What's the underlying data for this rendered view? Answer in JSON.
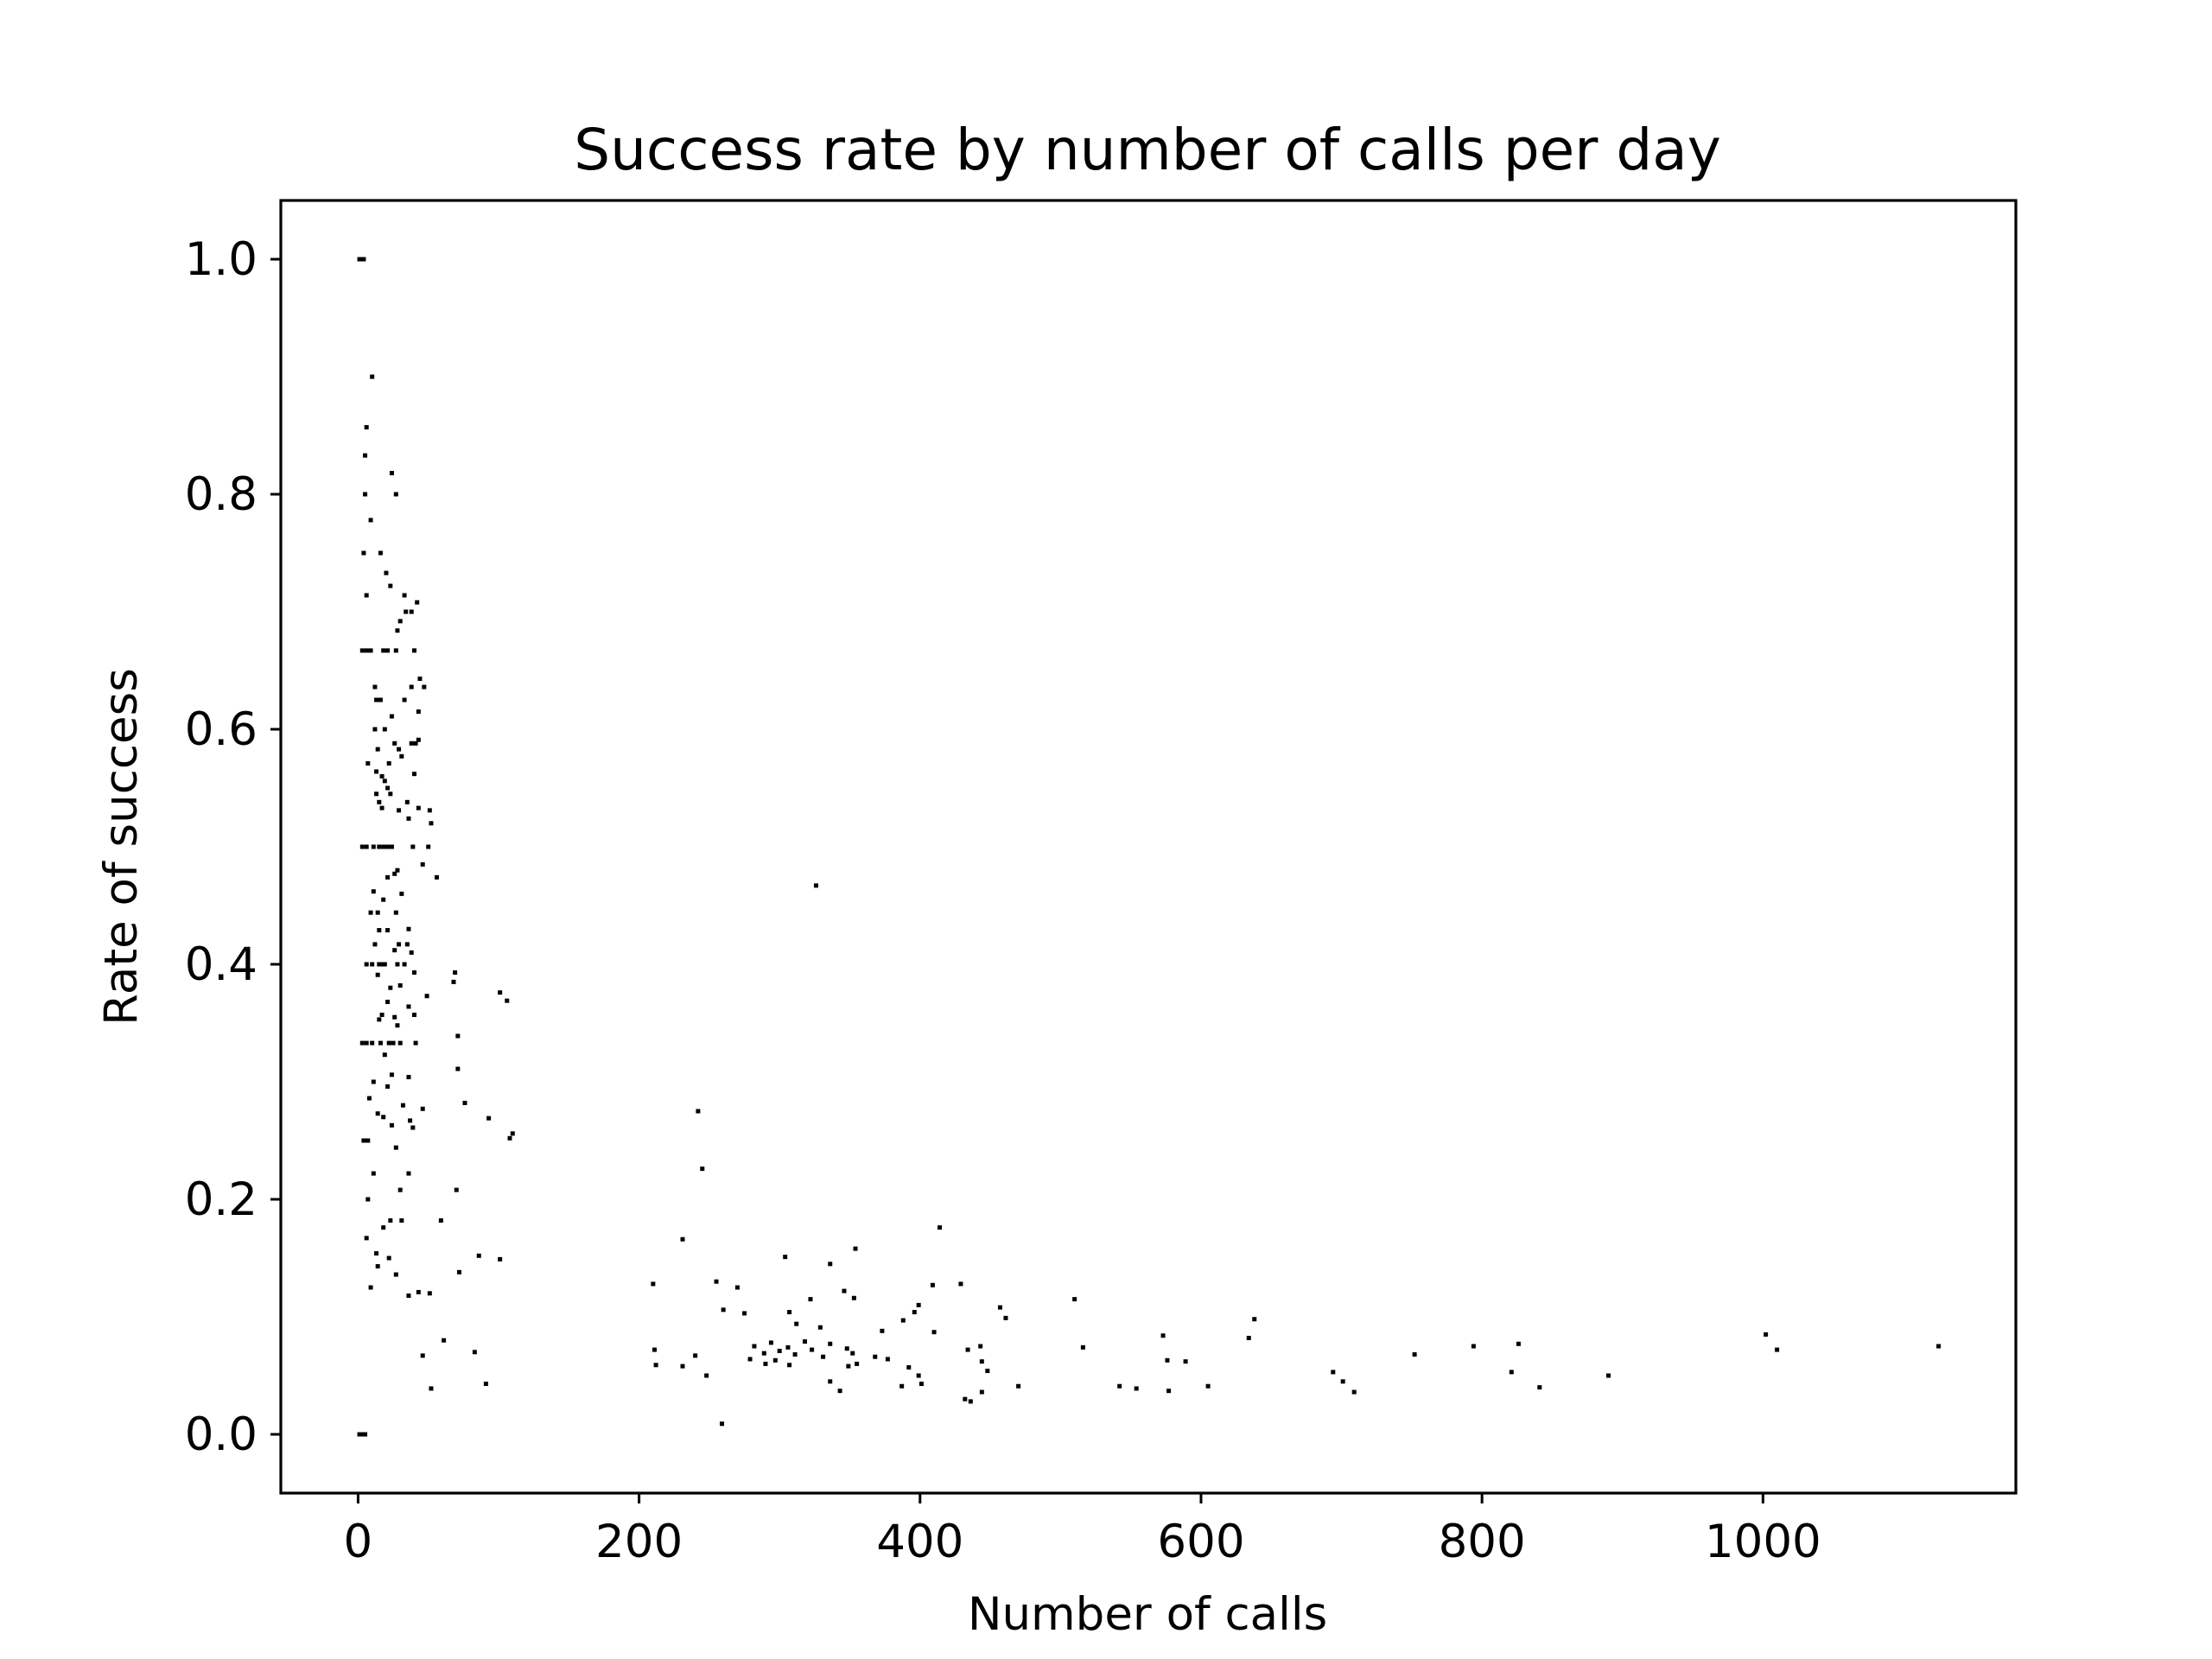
{
  "chart_data": {
    "type": "scatter",
    "title": "Success rate by number of calls per day",
    "xlabel": "Number of calls",
    "ylabel": "Rate of success",
    "xlim": [
      -55,
      1180
    ],
    "ylim": [
      -0.05,
      1.05
    ],
    "xticks": [
      0,
      200,
      400,
      600,
      800,
      1000
    ],
    "yticks": [
      0.0,
      0.2,
      0.4,
      0.6,
      0.8,
      1.0
    ],
    "xtick_labels": [
      "0",
      "200",
      "400",
      "600",
      "800",
      "1000"
    ],
    "ytick_labels": [
      "0.0",
      "0.2",
      "0.4",
      "0.6",
      "0.8",
      "1.0"
    ],
    "grid": false,
    "legend": "none",
    "marker_color": "#000000",
    "points": [
      [
        1,
        1.0
      ],
      [
        2,
        1.0
      ],
      [
        3,
        1.0
      ],
      [
        4,
        1.0
      ],
      [
        1,
        0.0
      ],
      [
        2,
        0.0
      ],
      [
        3,
        0.0
      ],
      [
        4,
        0.0
      ],
      [
        5,
        0.0
      ],
      [
        10,
        0.9
      ],
      [
        6,
        0.857
      ],
      [
        5,
        0.833
      ],
      [
        24,
        0.818
      ],
      [
        27,
        0.8
      ],
      [
        5,
        0.8
      ],
      [
        9,
        0.778
      ],
      [
        4,
        0.75
      ],
      [
        16,
        0.75
      ],
      [
        20,
        0.733
      ],
      [
        23,
        0.722
      ],
      [
        6,
        0.714
      ],
      [
        33,
        0.714
      ],
      [
        38,
        0.7
      ],
      [
        42,
        0.708
      ],
      [
        30,
        0.692
      ],
      [
        34,
        0.7
      ],
      [
        28,
        0.684
      ],
      [
        3,
        0.667
      ],
      [
        6,
        0.667
      ],
      [
        9,
        0.667
      ],
      [
        18,
        0.667
      ],
      [
        21,
        0.667
      ],
      [
        27,
        0.667
      ],
      [
        40,
        0.667
      ],
      [
        44,
        0.643
      ],
      [
        47,
        0.636
      ],
      [
        12,
        0.636
      ],
      [
        16,
        0.625
      ],
      [
        13,
        0.625
      ],
      [
        33,
        0.625
      ],
      [
        38,
        0.636
      ],
      [
        24,
        0.611
      ],
      [
        43,
        0.615
      ],
      [
        12,
        0.6
      ],
      [
        19,
        0.6
      ],
      [
        26,
        0.588
      ],
      [
        29,
        0.583
      ],
      [
        38,
        0.588
      ],
      [
        41,
        0.588
      ],
      [
        43,
        0.591
      ],
      [
        14,
        0.583
      ],
      [
        31,
        0.577
      ],
      [
        22,
        0.571
      ],
      [
        7,
        0.571
      ],
      [
        13,
        0.564
      ],
      [
        40,
        0.562
      ],
      [
        17,
        0.56
      ],
      [
        19,
        0.556
      ],
      [
        21,
        0.55
      ],
      [
        23,
        0.545
      ],
      [
        13,
        0.545
      ],
      [
        15,
        0.538
      ],
      [
        35,
        0.538
      ],
      [
        43,
        0.533
      ],
      [
        17,
        0.533
      ],
      [
        29,
        0.531
      ],
      [
        51,
        0.531
      ],
      [
        52,
        0.52
      ],
      [
        36,
        0.524
      ],
      [
        3,
        0.5
      ],
      [
        6,
        0.5
      ],
      [
        11,
        0.5
      ],
      [
        15,
        0.5
      ],
      [
        18,
        0.5
      ],
      [
        21,
        0.5
      ],
      [
        24,
        0.5
      ],
      [
        50,
        0.5
      ],
      [
        39,
        0.5
      ],
      [
        46,
        0.485
      ],
      [
        28,
        0.48
      ],
      [
        26,
        0.477
      ],
      [
        56,
        0.474
      ],
      [
        21,
        0.474
      ],
      [
        31,
        0.46
      ],
      [
        11,
        0.462
      ],
      [
        18,
        0.455
      ],
      [
        14,
        0.444
      ],
      [
        27,
        0.444
      ],
      [
        9,
        0.444
      ],
      [
        36,
        0.43
      ],
      [
        21,
        0.429
      ],
      [
        15,
        0.429
      ],
      [
        29,
        0.417
      ],
      [
        35,
        0.417
      ],
      [
        12,
        0.417
      ],
      [
        26,
        0.412
      ],
      [
        38,
        0.41
      ],
      [
        6,
        0.4
      ],
      [
        10,
        0.4
      ],
      [
        15,
        0.4
      ],
      [
        17,
        0.4
      ],
      [
        19,
        0.4
      ],
      [
        28,
        0.4
      ],
      [
        33,
        0.4
      ],
      [
        40,
        0.393
      ],
      [
        69,
        0.393
      ],
      [
        68,
        0.385
      ],
      [
        14,
        0.391
      ],
      [
        30,
        0.382
      ],
      [
        23,
        0.38
      ],
      [
        101,
        0.376
      ],
      [
        49,
        0.373
      ],
      [
        106,
        0.369
      ],
      [
        21,
        0.368
      ],
      [
        36,
        0.364
      ],
      [
        40,
        0.357
      ],
      [
        17,
        0.357
      ],
      [
        26,
        0.355
      ],
      [
        15,
        0.353
      ],
      [
        28,
        0.348
      ],
      [
        71,
        0.339
      ],
      [
        3,
        0.333
      ],
      [
        6,
        0.333
      ],
      [
        10,
        0.333
      ],
      [
        16,
        0.333
      ],
      [
        22,
        0.333
      ],
      [
        25,
        0.333
      ],
      [
        30,
        0.333
      ],
      [
        41,
        0.333
      ],
      [
        19,
        0.323
      ],
      [
        71,
        0.311
      ],
      [
        24,
        0.306
      ],
      [
        36,
        0.304
      ],
      [
        11,
        0.3
      ],
      [
        21,
        0.296
      ],
      [
        8,
        0.286
      ],
      [
        46,
        0.277
      ],
      [
        76,
        0.282
      ],
      [
        32,
        0.28
      ],
      [
        14,
        0.273
      ],
      [
        18,
        0.27
      ],
      [
        93,
        0.269
      ],
      [
        37,
        0.267
      ],
      [
        24,
        0.263
      ],
      [
        39,
        0.261
      ],
      [
        110,
        0.256
      ],
      [
        108,
        0.252
      ],
      [
        4,
        0.25
      ],
      [
        7,
        0.25
      ],
      [
        27,
        0.244
      ],
      [
        11,
        0.222
      ],
      [
        36,
        0.222
      ],
      [
        30,
        0.208
      ],
      [
        70,
        0.208
      ],
      [
        7,
        0.2
      ],
      [
        59,
        0.182
      ],
      [
        23,
        0.182
      ],
      [
        31,
        0.182
      ],
      [
        18,
        0.176
      ],
      [
        6,
        0.167
      ],
      [
        13,
        0.154
      ],
      [
        22,
        0.15
      ],
      [
        86,
        0.152
      ],
      [
        101,
        0.149
      ],
      [
        14,
        0.143
      ],
      [
        72,
        0.138
      ],
      [
        27,
        0.136
      ],
      [
        9,
        0.125
      ],
      [
        36,
        0.118
      ],
      [
        43,
        0.121
      ],
      [
        51,
        0.12
      ],
      [
        61,
        0.08
      ],
      [
        46,
        0.067
      ],
      [
        83,
        0.07
      ],
      [
        52,
        0.039
      ],
      [
        91,
        0.043
      ],
      [
        326,
        0.467
      ],
      [
        242,
        0.275
      ],
      [
        245,
        0.226
      ],
      [
        414,
        0.176
      ],
      [
        231,
        0.166
      ],
      [
        354,
        0.158
      ],
      [
        336,
        0.145
      ],
      [
        304,
        0.151
      ],
      [
        210,
        0.128
      ],
      [
        255,
        0.13
      ],
      [
        270,
        0.125
      ],
      [
        409,
        0.127
      ],
      [
        429,
        0.128
      ],
      [
        346,
        0.122
      ],
      [
        322,
        0.115
      ],
      [
        353,
        0.116
      ],
      [
        399,
        0.11
      ],
      [
        510,
        0.115
      ],
      [
        457,
        0.108
      ],
      [
        260,
        0.106
      ],
      [
        275,
        0.103
      ],
      [
        307,
        0.104
      ],
      [
        396,
        0.104
      ],
      [
        461,
        0.099
      ],
      [
        638,
        0.098
      ],
      [
        388,
        0.097
      ],
      [
        312,
        0.094
      ],
      [
        329,
        0.091
      ],
      [
        373,
        0.088
      ],
      [
        573,
        0.084
      ],
      [
        634,
        0.082
      ],
      [
        1002,
        0.085
      ],
      [
        410,
        0.087
      ],
      [
        282,
        0.075
      ],
      [
        294,
        0.078
      ],
      [
        306,
        0.074
      ],
      [
        318,
        0.079
      ],
      [
        336,
        0.077
      ],
      [
        348,
        0.073
      ],
      [
        289,
        0.069
      ],
      [
        300,
        0.071
      ],
      [
        311,
        0.068
      ],
      [
        323,
        0.072
      ],
      [
        352,
        0.069
      ],
      [
        211,
        0.072
      ],
      [
        516,
        0.074
      ],
      [
        434,
        0.072
      ],
      [
        443,
        0.075
      ],
      [
        794,
        0.075
      ],
      [
        826,
        0.077
      ],
      [
        1010,
        0.072
      ],
      [
        1125,
        0.075
      ],
      [
        752,
        0.068
      ],
      [
        240,
        0.067
      ],
      [
        279,
        0.064
      ],
      [
        297,
        0.063
      ],
      [
        331,
        0.066
      ],
      [
        368,
        0.066
      ],
      [
        377,
        0.064
      ],
      [
        576,
        0.063
      ],
      [
        589,
        0.062
      ],
      [
        444,
        0.062
      ],
      [
        212,
        0.059
      ],
      [
        231,
        0.058
      ],
      [
        290,
        0.06
      ],
      [
        307,
        0.059
      ],
      [
        349,
        0.058
      ],
      [
        355,
        0.06
      ],
      [
        392,
        0.057
      ],
      [
        821,
        0.053
      ],
      [
        248,
        0.05
      ],
      [
        399,
        0.05
      ],
      [
        448,
        0.054
      ],
      [
        694,
        0.053
      ],
      [
        890,
        0.05
      ],
      [
        336,
        0.045
      ],
      [
        401,
        0.043
      ],
      [
        701,
        0.045
      ],
      [
        387,
        0.041
      ],
      [
        343,
        0.037
      ],
      [
        470,
        0.041
      ],
      [
        542,
        0.041
      ],
      [
        554,
        0.039
      ],
      [
        605,
        0.041
      ],
      [
        841,
        0.04
      ],
      [
        709,
        0.036
      ],
      [
        577,
        0.037
      ],
      [
        444,
        0.036
      ],
      [
        432,
        0.03
      ],
      [
        436,
        0.028
      ],
      [
        259,
        0.009
      ]
    ]
  }
}
